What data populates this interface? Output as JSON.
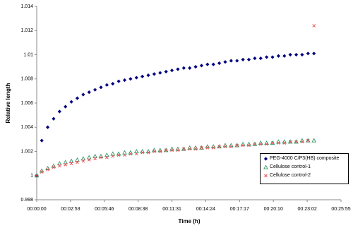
{
  "chart_data": {
    "type": "scatter",
    "ylabel": "Relative length",
    "xlabel": "Time (h)",
    "xlim": [
      0,
      0.018
    ],
    "xticks": [
      {
        "value": 0,
        "label": "00:00:00"
      },
      {
        "value": 0.002,
        "label": "00:02:53"
      },
      {
        "value": 0.004,
        "label": "00:05:46"
      },
      {
        "value": 0.006,
        "label": "00:08:38"
      },
      {
        "value": 0.008,
        "label": "00:11:31"
      },
      {
        "value": 0.01,
        "label": "00:14:24"
      },
      {
        "value": 0.012,
        "label": "00:17:17"
      },
      {
        "value": 0.014,
        "label": "00:20:10"
      },
      {
        "value": 0.016,
        "label": "00:23:02"
      },
      {
        "value": 0.018,
        "label": "00:25:55"
      }
    ],
    "ylim": [
      0.998,
      1.014
    ],
    "yticks": [
      0.998,
      1,
      1.002,
      1.004,
      1.006,
      1.008,
      1.01,
      1.012,
      1.014
    ],
    "grid": false,
    "legend": "lower right",
    "x": [
      0,
      0.0003,
      0.00065,
      0.001,
      0.00135,
      0.0017,
      0.00205,
      0.0024,
      0.00275,
      0.0031,
      0.00345,
      0.0038,
      0.00415,
      0.0045,
      0.00485,
      0.0052,
      0.00555,
      0.0059,
      0.00625,
      0.0066,
      0.00695,
      0.0073,
      0.00765,
      0.008,
      0.00835,
      0.0087,
      0.00905,
      0.0094,
      0.00975,
      0.0101,
      0.01045,
      0.0108,
      0.01115,
      0.0115,
      0.01185,
      0.0122,
      0.01255,
      0.0129,
      0.01325,
      0.0136,
      0.01395,
      0.0143,
      0.01465,
      0.015,
      0.01535,
      0.0157,
      0.01605,
      0.0164
    ],
    "series": [
      {
        "name": "PEG-4000 C/P3(HB) composite",
        "color": "#000080",
        "marker": "diamond",
        "values": [
          1.0,
          1.0029,
          1.004,
          1.0047,
          1.0053,
          1.0057,
          1.0061,
          1.0064,
          1.0067,
          1.0069,
          1.0071,
          1.0073,
          1.0075,
          1.0076,
          1.0078,
          1.0079,
          1.008,
          1.0081,
          1.0082,
          1.0083,
          1.0084,
          1.0085,
          1.0086,
          1.0087,
          1.0088,
          1.0089,
          1.0089,
          1.009,
          1.0091,
          1.0092,
          1.0092,
          1.0093,
          1.0094,
          1.0095,
          1.0095,
          1.0096,
          1.0096,
          1.0097,
          1.0097,
          1.0098,
          1.0098,
          1.0099,
          1.0099,
          1.01,
          1.01,
          1.01,
          1.0101,
          1.0101
        ]
      },
      {
        "name": "Cellulose control-1",
        "color": "#339966",
        "marker": "triangle",
        "values": [
          1.0,
          1.0004,
          1.0006,
          1.0008,
          1.001,
          1.0011,
          1.0012,
          1.0013,
          1.0014,
          1.0015,
          1.0016,
          1.0016,
          1.0017,
          1.0018,
          1.0018,
          1.0019,
          1.0019,
          1.002,
          1.002,
          1.002,
          1.0021,
          1.0021,
          1.0021,
          1.0022,
          1.0022,
          1.0022,
          1.0023,
          1.0023,
          1.0023,
          1.0024,
          1.0024,
          1.0024,
          1.0025,
          1.0025,
          1.0025,
          1.0026,
          1.0026,
          1.0026,
          1.0027,
          1.0027,
          1.0027,
          1.0028,
          1.0028,
          1.0028,
          1.0028,
          1.0029,
          1.0029,
          1.0029
        ]
      },
      {
        "name": "Cellulose control-2",
        "color": "#e8474b",
        "marker": "x",
        "values": [
          1.0,
          1.0003,
          1.0005,
          1.0007,
          1.0008,
          1.0009,
          1.001,
          1.0011,
          1.0012,
          1.0013,
          1.0014,
          1.0015,
          1.0015,
          1.0016,
          1.0017,
          1.0017,
          1.0018,
          1.0018,
          1.0019,
          1.0019,
          1.002,
          1.002,
          1.0021,
          1.0021,
          1.0021,
          1.0022,
          1.0022,
          1.0022,
          1.0023,
          1.0023,
          1.0023,
          1.0024,
          1.0024,
          1.0024,
          1.0025,
          1.0025,
          1.0025,
          1.0026,
          1.0026,
          1.0026,
          1.0027,
          1.0027,
          1.0027,
          1.0028,
          1.0028,
          1.0028,
          1.0029,
          1.0124
        ]
      }
    ]
  }
}
